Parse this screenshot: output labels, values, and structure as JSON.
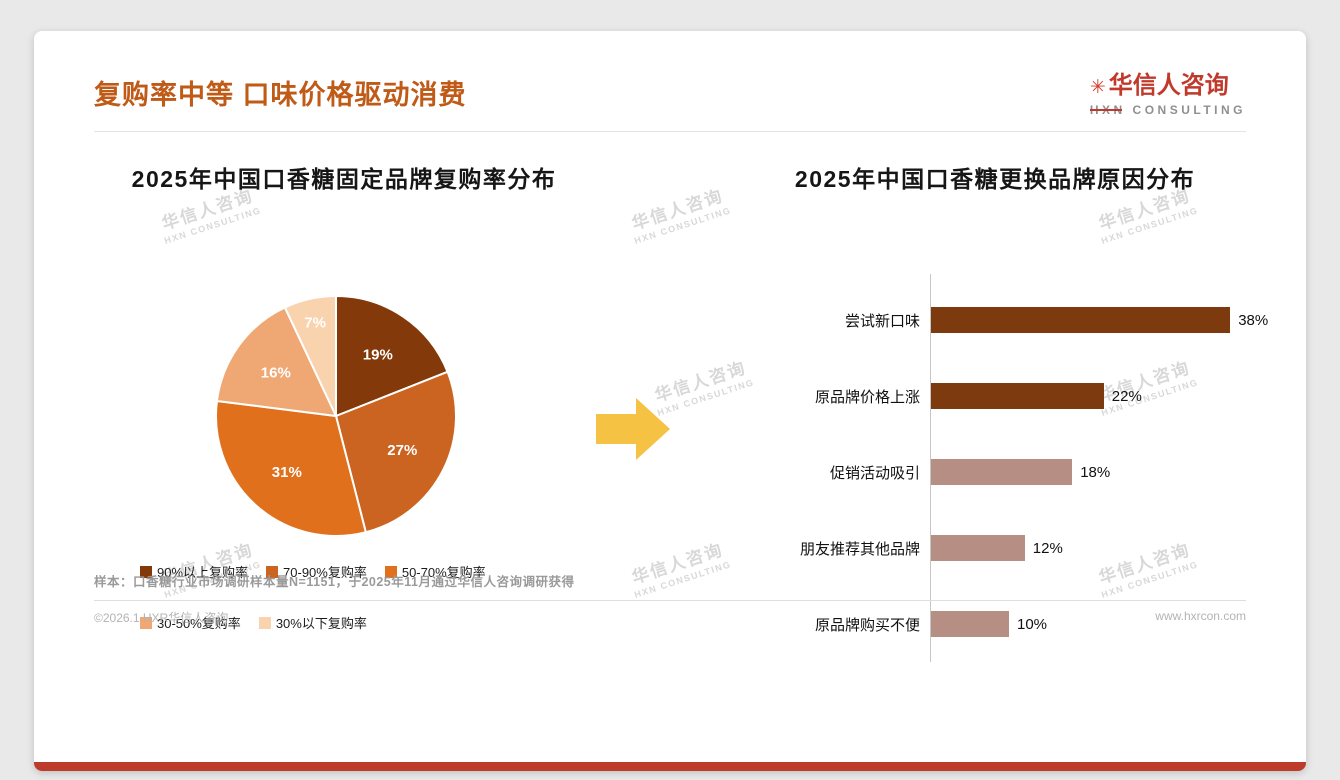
{
  "header": {
    "title": "复购率中等 口味价格驱动消费",
    "logo": {
      "mark": "✳",
      "name": "华信人咨询",
      "subtitle_head": "HXN",
      "subtitle_tail": " CONSULTING"
    }
  },
  "watermark": {
    "line1": "华信人咨询",
    "line2": "HXN CONSULTING"
  },
  "arrow": {
    "color": "#F6C243"
  },
  "chart_data": [
    {
      "type": "pie",
      "title": "2025年中国口香糖固定品牌复购率分布",
      "labels": [
        "90%以上复购率",
        "70-90%复购率",
        "50-70%复购率",
        "30-50%复购率",
        "30%以下复购率"
      ],
      "values": [
        19,
        27,
        31,
        16,
        7
      ],
      "colors": [
        "#833909",
        "#cb6420",
        "#e1701c",
        "#efa873",
        "#f9d3ad"
      ],
      "label_format": "percent",
      "legend_position": "bottom"
    },
    {
      "type": "bar",
      "orientation": "horizontal",
      "title": "2025年中国口香糖更换品牌原因分布",
      "categories": [
        "尝试新口味",
        "原品牌价格上涨",
        "促销活动吸引",
        "朋友推荐其他品牌",
        "原品牌购买不便"
      ],
      "values": [
        38,
        22,
        18,
        12,
        10
      ],
      "colors": [
        "#7c3a0e",
        "#7c3a0e",
        "#b78e84",
        "#b78e84",
        "#b78e84"
      ],
      "xlim": [
        0,
        40
      ],
      "value_suffix": "%",
      "grid": false
    }
  ],
  "footer": {
    "note": "样本：口香糖行业市场调研样本量N=1151，于2025年11月通过华信人咨询调研获得",
    "copyright": "©2026.1 HXR华信人咨询",
    "website": "www.hxrcon.com"
  }
}
